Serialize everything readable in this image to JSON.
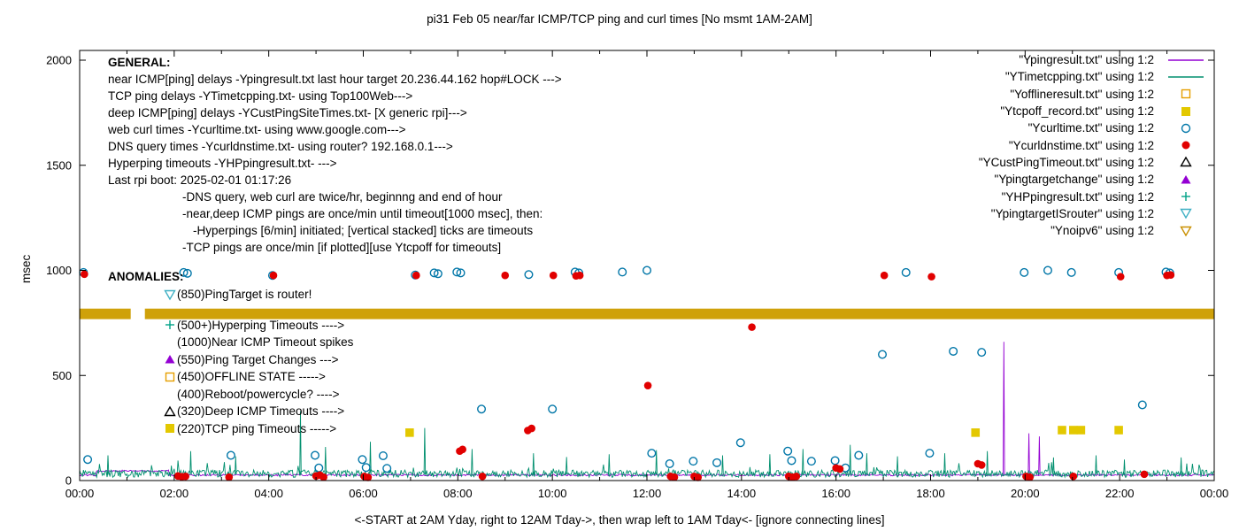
{
  "chart_data": {
    "type": "scatter",
    "title": "pi31 Feb 05  near/far ICMP/TCP ping and curl times [No msmt 1AM-2AM]",
    "xlabel": "<-START at 2AM Yday, right to 12AM Tday->, then wrap left to 1AM Tday<- [ignore connecting lines]",
    "ylabel": "msec",
    "x_range_hours": [
      0,
      24
    ],
    "x_tick_labels": [
      "00:00",
      "02:00",
      "04:00",
      "06:00",
      "08:00",
      "10:00",
      "12:00",
      "14:00",
      "16:00",
      "18:00",
      "20:00",
      "22:00",
      "00:00"
    ],
    "ylim": [
      0,
      2000
    ],
    "y_ticks": [
      0,
      500,
      1000,
      1500,
      2000
    ],
    "grid": false,
    "legend_position": "top-right",
    "no_measurement_gap_hours": [
      1.0,
      2.0
    ],
    "band": {
      "name": "Ynoipv6",
      "y_low": 768,
      "y_high": 818,
      "color": "#cfa10a",
      "gap_hours": [
        1.08,
        1.38
      ]
    },
    "lines": [
      {
        "name": "Ypingresult.txt",
        "color": "#9400d3",
        "baseline": 25,
        "noise": 8,
        "elevated_segments": [
          [
            0.35,
            1.9,
            45
          ]
        ],
        "spikes": [
          [
            19.55,
            660
          ],
          [
            20.08,
            225
          ],
          [
            20.3,
            210
          ]
        ]
      },
      {
        "name": "YTimetcpping.txt",
        "color": "#008f6e",
        "baseline": 28,
        "noise": 34,
        "elevated_segments": [],
        "spikes": [
          [
            0.6,
            120
          ],
          [
            2.35,
            140
          ],
          [
            3.3,
            115
          ],
          [
            4.67,
            330
          ],
          [
            5.2,
            160
          ],
          [
            6.15,
            185
          ],
          [
            7.3,
            250
          ],
          [
            8.3,
            150
          ],
          [
            9.6,
            130
          ],
          [
            10.3,
            112
          ],
          [
            11.2,
            125
          ],
          [
            12.2,
            145
          ],
          [
            13.6,
            120
          ],
          [
            14.6,
            125
          ],
          [
            15.3,
            150
          ],
          [
            16.3,
            170
          ],
          [
            16.65,
            130
          ],
          [
            17.3,
            115
          ],
          [
            18.3,
            130
          ],
          [
            19.2,
            140
          ],
          [
            20.6,
            110
          ],
          [
            21.5,
            120
          ],
          [
            22.1,
            100
          ],
          [
            23.3,
            110
          ]
        ]
      }
    ],
    "scatter": [
      {
        "name": "Ycurltime.txt",
        "marker": "circle-open",
        "color": "#0076a8",
        "points": [
          [
            0.08,
            990
          ],
          [
            0.17,
            100
          ],
          [
            2.2,
            990
          ],
          [
            2.28,
            986
          ],
          [
            3.2,
            120
          ],
          [
            4.08,
            976
          ],
          [
            4.98,
            120
          ],
          [
            5.06,
            60
          ],
          [
            5.98,
            100
          ],
          [
            6.06,
            62
          ],
          [
            6.42,
            118
          ],
          [
            6.5,
            58
          ],
          [
            7.1,
            978
          ],
          [
            7.5,
            988
          ],
          [
            7.58,
            984
          ],
          [
            7.98,
            992
          ],
          [
            8.06,
            988
          ],
          [
            8.5,
            340
          ],
          [
            9.5,
            980
          ],
          [
            10.0,
            340
          ],
          [
            10.48,
            992
          ],
          [
            10.56,
            988
          ],
          [
            11.48,
            992
          ],
          [
            12.0,
            1000
          ],
          [
            12.1,
            130
          ],
          [
            12.48,
            80
          ],
          [
            12.98,
            92
          ],
          [
            13.48,
            85
          ],
          [
            13.98,
            180
          ],
          [
            14.98,
            140
          ],
          [
            15.06,
            95
          ],
          [
            15.48,
            92
          ],
          [
            15.98,
            95
          ],
          [
            16.2,
            60
          ],
          [
            16.48,
            120
          ],
          [
            16.98,
            600
          ],
          [
            17.48,
            990
          ],
          [
            17.98,
            130
          ],
          [
            18.48,
            615
          ],
          [
            19.08,
            610
          ],
          [
            19.98,
            990
          ],
          [
            20.48,
            1000
          ],
          [
            20.98,
            990
          ],
          [
            21.98,
            990
          ],
          [
            22.48,
            360
          ],
          [
            22.98,
            992
          ],
          [
            23.06,
            988
          ]
        ]
      },
      {
        "name": "Ycurldnstime.txt",
        "marker": "circle-filled",
        "color": "#e10000",
        "points": [
          [
            0.1,
            982
          ],
          [
            2.08,
            22
          ],
          [
            2.16,
            18
          ],
          [
            2.24,
            20
          ],
          [
            3.16,
            16
          ],
          [
            4.1,
            976
          ],
          [
            5.0,
            22
          ],
          [
            5.08,
            26
          ],
          [
            5.16,
            16
          ],
          [
            6.02,
            20
          ],
          [
            6.1,
            15
          ],
          [
            7.12,
            976
          ],
          [
            8.04,
            140
          ],
          [
            8.1,
            148
          ],
          [
            8.52,
            20
          ],
          [
            9.0,
            976
          ],
          [
            9.48,
            238
          ],
          [
            9.56,
            248
          ],
          [
            10.02,
            976
          ],
          [
            10.5,
            974
          ],
          [
            10.58,
            976
          ],
          [
            12.02,
            452
          ],
          [
            12.5,
            20
          ],
          [
            12.58,
            16
          ],
          [
            13.0,
            20
          ],
          [
            13.08,
            15
          ],
          [
            14.22,
            730
          ],
          [
            15.0,
            20
          ],
          [
            15.08,
            16
          ],
          [
            15.16,
            20
          ],
          [
            16.0,
            60
          ],
          [
            16.08,
            55
          ],
          [
            17.02,
            976
          ],
          [
            18.02,
            970
          ],
          [
            19.0,
            80
          ],
          [
            19.08,
            74
          ],
          [
            20.02,
            20
          ],
          [
            20.1,
            16
          ],
          [
            21.02,
            20
          ],
          [
            22.02,
            970
          ],
          [
            22.52,
            30
          ],
          [
            23.0,
            976
          ],
          [
            23.08,
            978
          ]
        ]
      },
      {
        "name": "Ytcpoff_record.txt",
        "marker": "square-filled",
        "color": "#e3c800",
        "points": [
          [
            6.98,
            228
          ],
          [
            18.95,
            228
          ],
          [
            20.78,
            240
          ],
          [
            21.02,
            240
          ],
          [
            21.18,
            240
          ],
          [
            21.98,
            240
          ]
        ]
      },
      {
        "name": "Yofflineresult.txt",
        "marker": "square-open",
        "color": "#e69f00",
        "points": []
      },
      {
        "name": "YCustPingTimeout.txt",
        "marker": "tri-up-open",
        "color": "#000000",
        "points": []
      },
      {
        "name": "Ypingtargetchange",
        "marker": "tri-up-filled",
        "color": "#9400d3",
        "points": []
      },
      {
        "name": "YHPpingresult.txt",
        "marker": "plus",
        "color": "#00a287",
        "points": []
      },
      {
        "name": "YpingtargetISrouter",
        "marker": "tri-down-open",
        "color": "#3fb0c4",
        "points": []
      },
      {
        "name": "Ynoipv6",
        "marker": "tri-down-open",
        "color": "#c98f00",
        "points": []
      }
    ]
  },
  "legend": [
    {
      "label": "\"Ypingresult.txt\" using 1:2",
      "marker": "line",
      "color": "#9400d3"
    },
    {
      "label": "\"YTimetcpping.txt\" using 1:2",
      "marker": "line",
      "color": "#008f6e"
    },
    {
      "label": "\"Yofflineresult.txt\" using 1:2",
      "marker": "square-open",
      "color": "#e69f00"
    },
    {
      "label": "\"Ytcpoff_record.txt\" using 1:2",
      "marker": "square-filled",
      "color": "#e3c800"
    },
    {
      "label": "\"Ycurltime.txt\" using 1:2",
      "marker": "circle-open",
      "color": "#0076a8"
    },
    {
      "label": "\"Ycurldnstime.txt\" using 1:2",
      "marker": "circle-filled",
      "color": "#e10000"
    },
    {
      "label": "\"YCustPingTimeout.txt\" using 1:2",
      "marker": "tri-up-open",
      "color": "#000000"
    },
    {
      "label": "\"Ypingtargetchange\" using 1:2",
      "marker": "tri-up-filled",
      "color": "#9400d3"
    },
    {
      "label": "\"YHPpingresult.txt\" using 1:2",
      "marker": "plus",
      "color": "#00a287"
    },
    {
      "label": "\"YpingtargetISrouter\" using 1:2",
      "marker": "tri-down-open",
      "color": "#3fb0c4"
    },
    {
      "label": "\"Ynoipv6\" using 1:2",
      "marker": "tri-down-open",
      "color": "#c98f00"
    }
  ],
  "annotations": {
    "general": {
      "heading": "GENERAL:",
      "lines": [
        {
          "text": "near ICMP[ping] delays -Ypingresult.txt last hour target 20.236.44.162 hop#LOCK --->",
          "indent": 0
        },
        {
          "text": "TCP ping delays -YTimetcpping.txt- using Top100Web--->",
          "indent": 0
        },
        {
          "text": "deep ICMP[ping] delays -YCustPingSiteTimes.txt- [X generic rpi]--->",
          "indent": 0
        },
        {
          "text": "web curl times -Ycurltime.txt- using www.google.com--->",
          "indent": 0
        },
        {
          "text": "DNS query times -Ycurldnstime.txt- using router? 192.168.0.1--->",
          "indent": 0
        },
        {
          "text": "Hyperping timeouts -YHPpingresult.txt- --->",
          "indent": 0
        },
        {
          "text": "Last rpi boot: 2025-02-01 01:17:26",
          "indent": 0
        },
        {
          "text": "-DNS query, web curl are twice/hr, beginnng and end of hour",
          "indent": 1
        },
        {
          "text": "-near,deep ICMP pings are once/min until timeout[1000 msec], then:",
          "indent": 1
        },
        {
          "text": "-Hyperpings [6/min] initiated; [vertical stacked] ticks are timeouts",
          "indent": 2
        },
        {
          "text": "-TCP pings are once/min [if plotted][use Ytcpoff for timeouts]",
          "indent": 1
        }
      ]
    },
    "anomalies": {
      "heading": "ANOMALIES:",
      "items": [
        {
          "marker": "tri-down-open",
          "color": "#3fb0c4",
          "text": "(850)PingTarget is router!",
          "gap_after": true
        },
        {
          "marker": "plus",
          "color": "#00a287",
          "text": "(500+)Hyperping Timeouts ---->"
        },
        {
          "marker": "none",
          "color": "",
          "text": "(1000)Near ICMP Timeout spikes"
        },
        {
          "marker": "tri-up-filled",
          "color": "#9400d3",
          "text": "(550)Ping Target Changes --->"
        },
        {
          "marker": "square-open",
          "color": "#e69f00",
          "text": "(450)OFFLINE STATE ----->"
        },
        {
          "marker": "none",
          "color": "",
          "text": "(400)Reboot/powercycle? ---->"
        },
        {
          "marker": "tri-up-open",
          "color": "#000000",
          "text": "(320)Deep ICMP Timeouts ---->"
        },
        {
          "marker": "square-filled",
          "color": "#e3c800",
          "text": "(220)TCP ping Timeouts ----->"
        }
      ]
    }
  }
}
